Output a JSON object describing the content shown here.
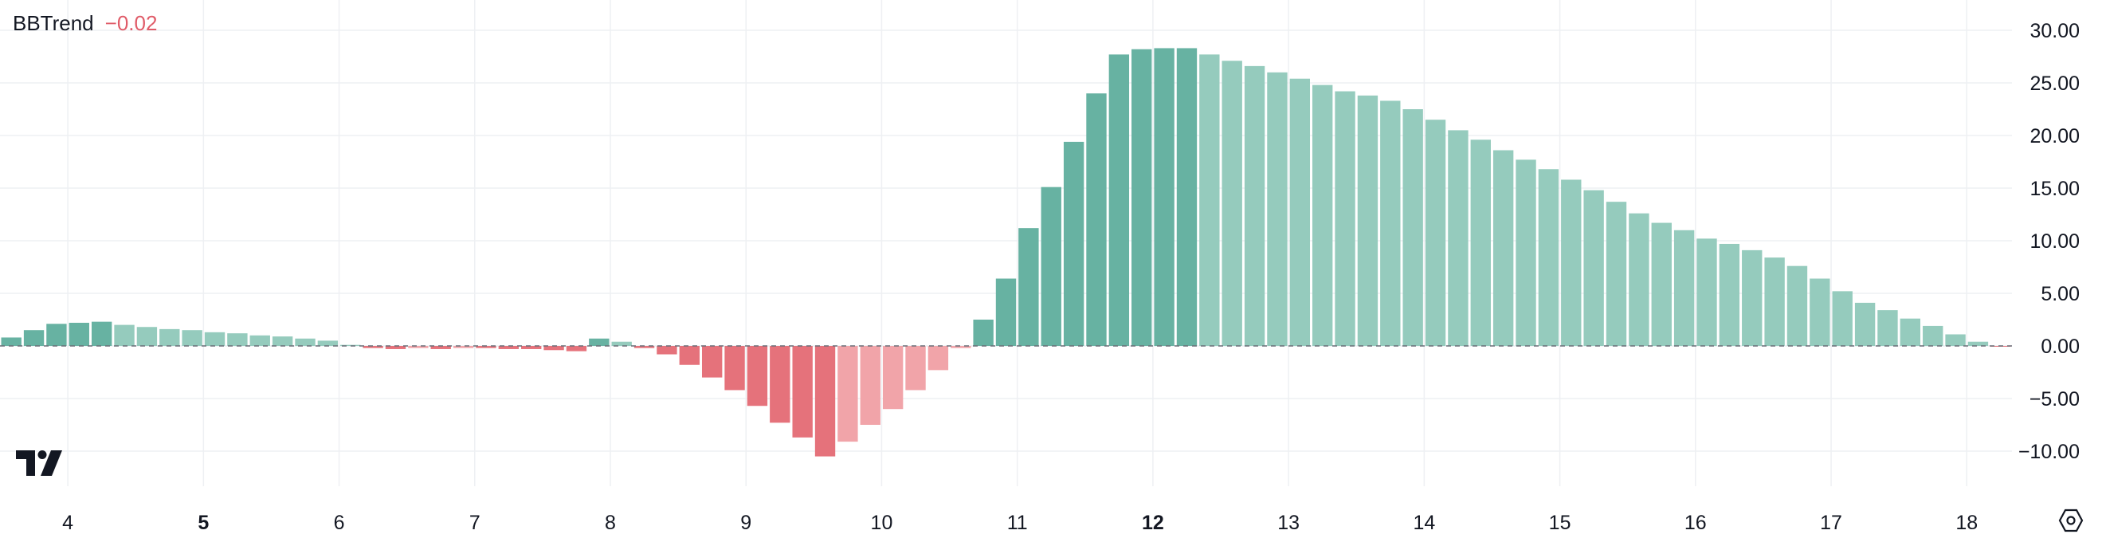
{
  "indicator": {
    "name": "BBTrend",
    "value": "−0.02"
  },
  "colors": {
    "up_strong": "#67b2a2",
    "up_fade": "#95cbbd",
    "down_strong": "#e5727b",
    "down_fade": "#f1a4a9",
    "grid": "#eef0f3",
    "axis_text": "#131722",
    "zero_line": "#6b6f78"
  },
  "icons": {
    "logo": "tradingview-logo-icon",
    "settings": "settings-hexagon-icon"
  },
  "chart_data": {
    "type": "bar",
    "title": "",
    "xlabel": "",
    "ylabel": "",
    "ylim": [
      -12.8,
      31.5
    ],
    "y_ticks": [
      "30.00",
      "25.00",
      "20.00",
      "15.00",
      "10.00",
      "5.00",
      "0.00",
      "−5.00",
      "−10.00"
    ],
    "y_tick_values": [
      30,
      25,
      20,
      15,
      10,
      5,
      0,
      -5,
      -10
    ],
    "x_ticks": [
      {
        "label": "4",
        "pos": 2.5,
        "bold": false
      },
      {
        "label": "5",
        "pos": 8.5,
        "bold": true
      },
      {
        "label": "6",
        "pos": 14.5,
        "bold": false
      },
      {
        "label": "7",
        "pos": 20.5,
        "bold": false
      },
      {
        "label": "8",
        "pos": 26.5,
        "bold": false
      },
      {
        "label": "9",
        "pos": 32.5,
        "bold": false
      },
      {
        "label": "10",
        "pos": 38.5,
        "bold": false
      },
      {
        "label": "11",
        "pos": 44.5,
        "bold": false
      },
      {
        "label": "12",
        "pos": 50.5,
        "bold": true
      },
      {
        "label": "13",
        "pos": 56.5,
        "bold": false
      },
      {
        "label": "14",
        "pos": 62.5,
        "bold": false
      },
      {
        "label": "15",
        "pos": 68.5,
        "bold": false
      },
      {
        "label": "16",
        "pos": 74.5,
        "bold": false
      },
      {
        "label": "17",
        "pos": 80.5,
        "bold": false
      },
      {
        "label": "18",
        "pos": 86.5,
        "bold": false
      }
    ],
    "values": [
      0.8,
      1.5,
      2.1,
      2.2,
      2.3,
      2.0,
      1.8,
      1.6,
      1.5,
      1.3,
      1.2,
      1.0,
      0.9,
      0.7,
      0.5,
      0.1,
      -0.2,
      -0.3,
      -0.2,
      -0.3,
      -0.2,
      -0.2,
      -0.3,
      -0.3,
      -0.4,
      -0.5,
      0.7,
      0.4,
      -0.2,
      -0.8,
      -1.8,
      -3.0,
      -4.2,
      -5.7,
      -7.3,
      -8.7,
      -10.5,
      -9.1,
      -7.5,
      -6.0,
      -4.2,
      -2.3,
      -0.2,
      2.5,
      6.4,
      11.2,
      15.1,
      19.4,
      24.0,
      27.7,
      28.2,
      28.3,
      28.3,
      27.7,
      27.1,
      26.6,
      26.0,
      25.4,
      24.8,
      24.2,
      23.8,
      23.3,
      22.5,
      21.5,
      20.5,
      19.6,
      18.6,
      17.7,
      16.8,
      15.8,
      14.8,
      13.7,
      12.6,
      11.7,
      11.0,
      10.2,
      9.7,
      9.1,
      8.4,
      7.6,
      6.4,
      5.2,
      4.1,
      3.4,
      2.6,
      1.9,
      1.1,
      0.4,
      -0.02
    ]
  }
}
